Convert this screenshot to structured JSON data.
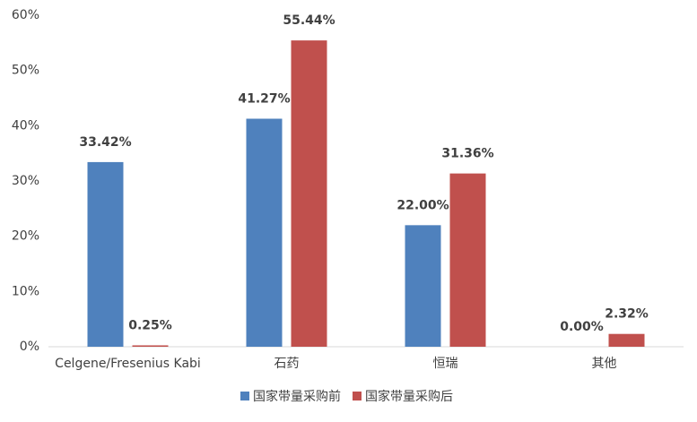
{
  "chart_data": {
    "type": "bar",
    "categories": [
      "Celgene/Fresenius Kabi",
      "石药",
      "恒瑞",
      "其他"
    ],
    "series": [
      {
        "name": "国家带量采购前",
        "color": "#4f81bd",
        "values": [
          33.42,
          41.27,
          22.0,
          0.0
        ],
        "value_labels": [
          "33.42%",
          "41.27%",
          "22.00%",
          "0.00%"
        ]
      },
      {
        "name": "国家带量采购后",
        "color": "#c0504d",
        "values": [
          0.25,
          55.44,
          31.36,
          2.32
        ],
        "value_labels": [
          "0.25%",
          "55.44%",
          "31.36%",
          "2.32%"
        ]
      }
    ],
    "ylim": [
      0,
      60
    ],
    "yticks": [
      {
        "value": 0,
        "label": "0%"
      },
      {
        "value": 10,
        "label": "10%"
      },
      {
        "value": 20,
        "label": "20%"
      },
      {
        "value": 30,
        "label": "30%"
      },
      {
        "value": 40,
        "label": "40%"
      },
      {
        "value": 50,
        "label": "50%"
      },
      {
        "value": 60,
        "label": "60%"
      }
    ],
    "grid": false
  }
}
